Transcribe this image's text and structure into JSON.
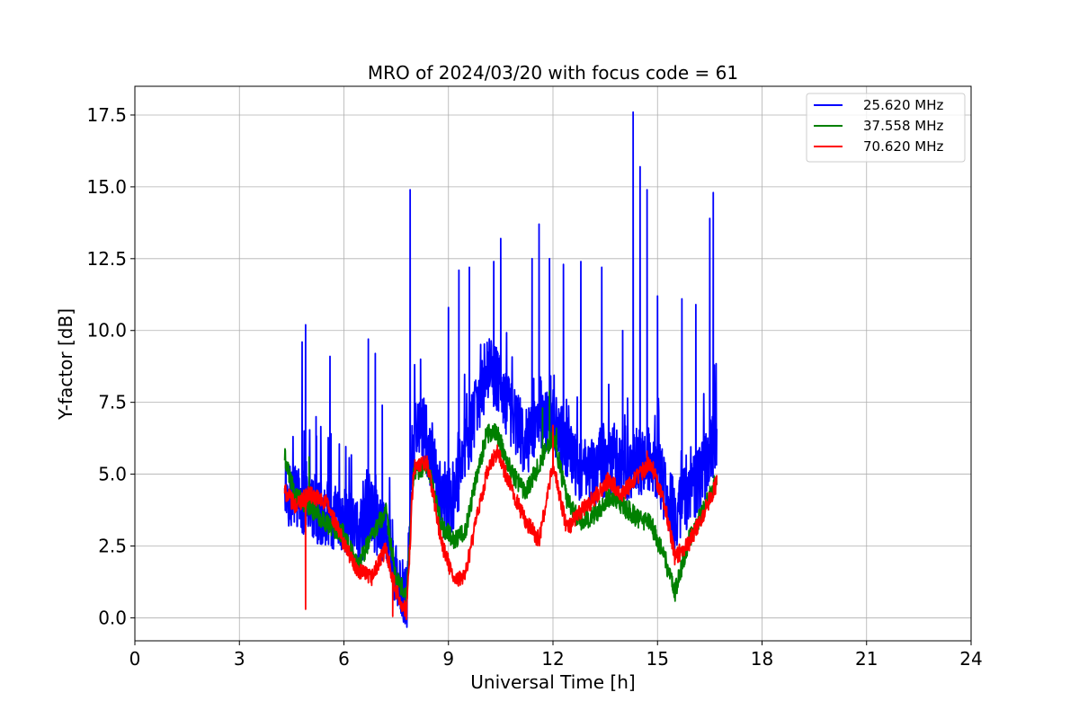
{
  "chart_data": {
    "type": "line",
    "title": "MRO of 2024/03/20 with focus code = 61",
    "xlabel": "Universal Time [h]",
    "ylabel": "Y-factor [dB]",
    "xlim": [
      0,
      24
    ],
    "ylim": [
      -0.8,
      18.5
    ],
    "xticks": [
      0,
      3,
      6,
      9,
      12,
      15,
      18,
      21,
      24
    ],
    "xtick_labels": [
      "0",
      "3",
      "6",
      "9",
      "12",
      "15",
      "18",
      "21",
      "24"
    ],
    "yticks": [
      0.0,
      2.5,
      5.0,
      7.5,
      10.0,
      12.5,
      15.0,
      17.5
    ],
    "ytick_labels": [
      "0.0",
      "2.5",
      "5.0",
      "7.5",
      "10.0",
      "12.5",
      "15.0",
      "17.5"
    ],
    "grid": true,
    "legend_position": "top-right",
    "series": [
      {
        "name": "25.620 MHz",
        "color": "#0000ff",
        "baseline": [
          [
            4.3,
            4.6
          ],
          [
            4.6,
            4.0
          ],
          [
            5.0,
            3.9
          ],
          [
            5.5,
            3.6
          ],
          [
            6.0,
            3.3
          ],
          [
            6.4,
            2.9
          ],
          [
            6.8,
            3.6
          ],
          [
            7.2,
            2.9
          ],
          [
            7.5,
            1.3
          ],
          [
            7.8,
            0.6
          ],
          [
            8.0,
            6.2
          ],
          [
            8.3,
            6.6
          ],
          [
            8.6,
            4.8
          ],
          [
            8.9,
            3.8
          ],
          [
            9.2,
            4.4
          ],
          [
            9.5,
            6.0
          ],
          [
            9.8,
            7.2
          ],
          [
            10.1,
            8.7
          ],
          [
            10.4,
            8.3
          ],
          [
            10.8,
            7.1
          ],
          [
            11.2,
            6.1
          ],
          [
            11.6,
            6.6
          ],
          [
            12.0,
            6.9
          ],
          [
            12.4,
            5.9
          ],
          [
            12.8,
            5.1
          ],
          [
            13.2,
            4.9
          ],
          [
            13.6,
            5.5
          ],
          [
            14.0,
            5.2
          ],
          [
            14.4,
            5.4
          ],
          [
            14.8,
            5.6
          ],
          [
            15.2,
            4.5
          ],
          [
            15.5,
            3.5
          ],
          [
            15.9,
            4.3
          ],
          [
            16.3,
            5.1
          ],
          [
            16.7,
            6.4
          ]
        ],
        "noise": 1.2,
        "spikes": [
          [
            4.9,
            10.2
          ],
          [
            4.8,
            9.6
          ],
          [
            5.2,
            7.0
          ],
          [
            5.6,
            9.1
          ],
          [
            6.7,
            9.7
          ],
          [
            6.9,
            9.2
          ],
          [
            7.1,
            7.4
          ],
          [
            7.9,
            14.9
          ],
          [
            8.2,
            9.0
          ],
          [
            9.0,
            10.8
          ],
          [
            9.3,
            12.1
          ],
          [
            9.6,
            12.2
          ],
          [
            10.3,
            12.4
          ],
          [
            10.5,
            13.2
          ],
          [
            11.4,
            12.5
          ],
          [
            11.6,
            13.7
          ],
          [
            11.9,
            12.5
          ],
          [
            12.3,
            12.3
          ],
          [
            12.8,
            12.4
          ],
          [
            13.4,
            12.2
          ],
          [
            14.0,
            10.0
          ],
          [
            14.3,
            17.6
          ],
          [
            14.5,
            15.7
          ],
          [
            14.7,
            14.9
          ],
          [
            15.0,
            11.2
          ],
          [
            15.7,
            11.1
          ],
          [
            16.1,
            10.9
          ],
          [
            16.5,
            13.9
          ],
          [
            16.6,
            14.8
          ]
        ]
      },
      {
        "name": "37.558 MHz",
        "color": "#008000",
        "baseline": [
          [
            4.3,
            5.6
          ],
          [
            4.6,
            4.2
          ],
          [
            5.0,
            3.9
          ],
          [
            5.5,
            3.3
          ],
          [
            6.0,
            2.9
          ],
          [
            6.4,
            1.8
          ],
          [
            6.8,
            2.9
          ],
          [
            7.2,
            3.7
          ],
          [
            7.5,
            1.3
          ],
          [
            7.8,
            0.8
          ],
          [
            8.0,
            5.1
          ],
          [
            8.4,
            5.3
          ],
          [
            8.8,
            3.2
          ],
          [
            9.2,
            2.7
          ],
          [
            9.5,
            3.1
          ],
          [
            9.8,
            4.9
          ],
          [
            10.1,
            6.4
          ],
          [
            10.4,
            6.4
          ],
          [
            10.8,
            5.1
          ],
          [
            11.2,
            4.4
          ],
          [
            11.6,
            5.3
          ],
          [
            12.0,
            6.4
          ],
          [
            12.4,
            4.1
          ],
          [
            12.8,
            3.3
          ],
          [
            13.2,
            3.6
          ],
          [
            13.6,
            4.2
          ],
          [
            14.0,
            3.9
          ],
          [
            14.4,
            3.5
          ],
          [
            14.8,
            3.3
          ],
          [
            15.2,
            2.1
          ],
          [
            15.5,
            0.9
          ],
          [
            15.9,
            2.7
          ],
          [
            16.3,
            3.7
          ],
          [
            16.7,
            4.9
          ]
        ],
        "noise": 0.35,
        "spikes": [
          [
            5.0,
            5.6
          ],
          [
            11.9,
            7.9
          ],
          [
            11.7,
            7.3
          ],
          [
            12.1,
            6.6
          ]
        ]
      },
      {
        "name": "70.620 MHz",
        "color": "#ff0000",
        "baseline": [
          [
            4.3,
            4.4
          ],
          [
            4.6,
            3.9
          ],
          [
            5.0,
            4.3
          ],
          [
            5.5,
            4.0
          ],
          [
            6.0,
            2.6
          ],
          [
            6.4,
            1.6
          ],
          [
            6.8,
            1.4
          ],
          [
            7.2,
            2.4
          ],
          [
            7.5,
            0.9
          ],
          [
            7.8,
            0.2
          ],
          [
            8.0,
            5.2
          ],
          [
            8.4,
            5.4
          ],
          [
            8.8,
            2.6
          ],
          [
            9.2,
            1.2
          ],
          [
            9.5,
            1.6
          ],
          [
            9.8,
            3.4
          ],
          [
            10.1,
            5.0
          ],
          [
            10.4,
            5.8
          ],
          [
            10.8,
            4.5
          ],
          [
            11.2,
            3.4
          ],
          [
            11.6,
            2.7
          ],
          [
            12.0,
            5.3
          ],
          [
            12.4,
            3.1
          ],
          [
            12.8,
            3.7
          ],
          [
            13.2,
            4.2
          ],
          [
            13.6,
            4.8
          ],
          [
            14.0,
            4.3
          ],
          [
            14.4,
            4.9
          ],
          [
            14.8,
            5.4
          ],
          [
            15.2,
            4.0
          ],
          [
            15.5,
            2.1
          ],
          [
            15.9,
            2.6
          ],
          [
            16.3,
            3.6
          ],
          [
            16.7,
            4.7
          ]
        ],
        "noise": 0.3,
        "spikes": [
          [
            4.9,
            0.3
          ],
          [
            7.4,
            0.05
          ],
          [
            12.0,
            6.7
          ],
          [
            14.7,
            5.8
          ]
        ]
      }
    ]
  }
}
